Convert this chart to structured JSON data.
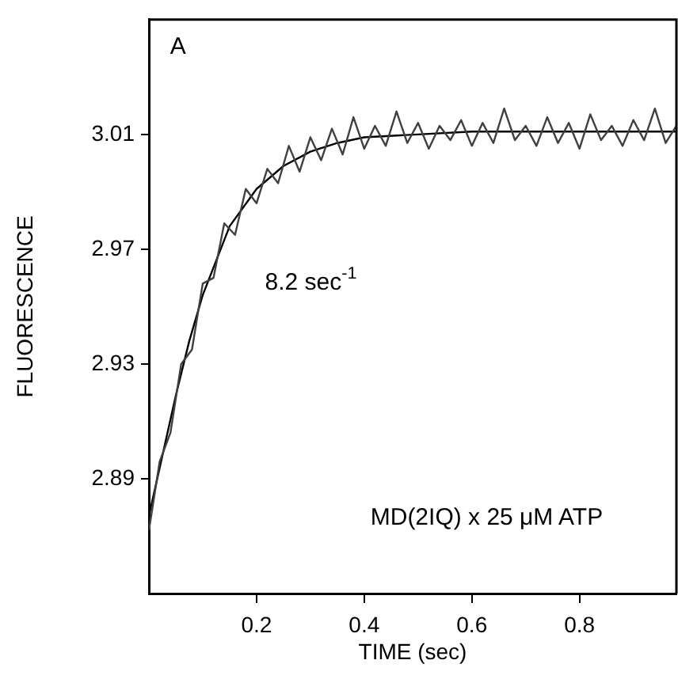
{
  "chart_data": {
    "type": "line",
    "xlabel": "TIME (sec)",
    "ylabel": "FLUORESCENCE",
    "annotations": [
      "A",
      "8.2 sec$^{-1}$",
      "MD(2IQ) x 25 μM ATP"
    ],
    "xlim": [
      0,
      0.98
    ],
    "ylim": [
      2.85,
      3.05
    ],
    "xticks": [
      0.2,
      0.4,
      0.6,
      0.8
    ],
    "yticks": [
      2.89,
      2.93,
      2.97,
      3.01
    ],
    "grid": false,
    "legend": false,
    "marker": "none",
    "line_style": "solid",
    "series": [
      {
        "color": "#404040",
        "x": [
          0,
          0.02,
          0.04,
          0.06,
          0.08,
          0.1,
          0.12,
          0.14,
          0.16,
          0.18,
          0.2,
          0.22,
          0.24,
          0.26,
          0.28,
          0.3,
          0.32,
          0.34,
          0.36,
          0.38,
          0.4,
          0.42,
          0.44,
          0.46,
          0.48,
          0.5,
          0.52,
          0.54,
          0.56,
          0.58,
          0.6,
          0.62,
          0.64,
          0.66,
          0.68,
          0.7,
          0.72,
          0.74,
          0.76,
          0.78,
          0.8,
          0.82,
          0.84,
          0.86,
          0.88,
          0.9,
          0.92,
          0.94,
          0.96,
          0.98
        ],
        "values": [
          2.872,
          2.896,
          2.906,
          2.93,
          2.935,
          2.958,
          2.96,
          2.979,
          2.975,
          2.991,
          2.986,
          2.998,
          2.993,
          3.006,
          2.997,
          3.009,
          3.001,
          3.012,
          3.003,
          3.016,
          3.005,
          3.013,
          3.006,
          3.018,
          3.007,
          3.014,
          3.005,
          3.013,
          3.008,
          3.015,
          3.006,
          3.014,
          3.007,
          3.019,
          3.008,
          3.013,
          3.006,
          3.016,
          3.007,
          3.014,
          3.005,
          3.017,
          3.008,
          3.013,
          3.006,
          3.015,
          3.008,
          3.019,
          3.007,
          3.013
        ]
      },
      {
        "color": "#000000",
        "x": [
          0,
          0.025,
          0.05,
          0.075,
          0.1,
          0.15,
          0.2,
          0.25,
          0.3,
          0.35,
          0.4,
          0.5,
          0.6,
          0.8,
          0.98
        ],
        "values": [
          2.877,
          2.898,
          2.919,
          2.938,
          2.954,
          2.978,
          2.991,
          2.999,
          3.004,
          3.007,
          3.009,
          3.01,
          3.011,
          3.011,
          3.011
        ]
      }
    ]
  }
}
